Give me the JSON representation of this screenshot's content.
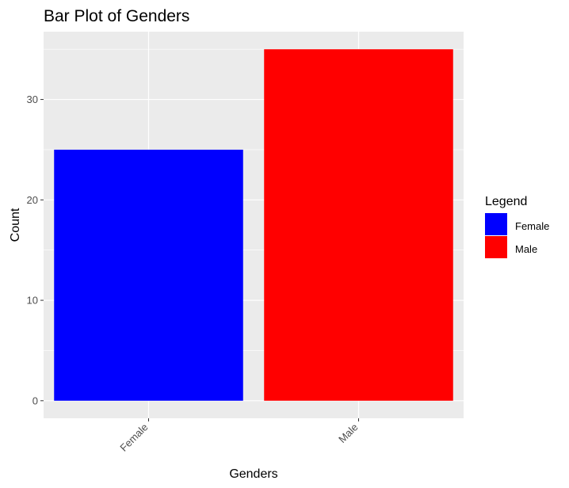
{
  "chart_data": {
    "type": "bar",
    "title": "Bar Plot of Genders",
    "xlabel": "Genders",
    "ylabel": "Count",
    "categories": [
      "Female",
      "Male"
    ],
    "values": [
      25,
      35
    ],
    "colors": [
      "#0000ff",
      "#ff0000"
    ],
    "ylim": [
      -1.75,
      36.75
    ],
    "yticks": [
      0,
      10,
      20,
      30
    ],
    "ytick_labels": [
      "0",
      "10",
      "20",
      "30"
    ],
    "panel_background": "#ebebeb",
    "grid": true,
    "grid_color": "#ffffff",
    "x_tick_rotation": "45 degrees",
    "legend": {
      "title": "Legend",
      "position": "right",
      "entries": [
        {
          "label": "Female",
          "color": "#0000ff"
        },
        {
          "label": "Male",
          "color": "#ff0000"
        }
      ]
    }
  }
}
